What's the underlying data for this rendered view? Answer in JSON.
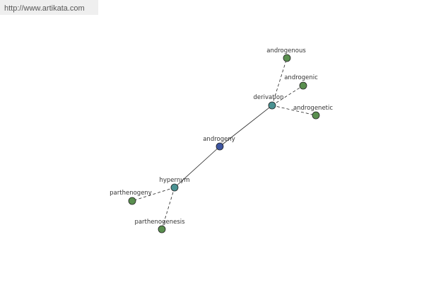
{
  "header": {
    "url": "http://www.artikata.com"
  },
  "nodes": [
    {
      "label": "androgeny"
    },
    {
      "label": "derivation"
    },
    {
      "label": "hypernym"
    },
    {
      "label": "androgenous"
    },
    {
      "label": "androgenic"
    },
    {
      "label": "androgenetic"
    },
    {
      "label": "parthenogeny"
    },
    {
      "label": "parthenogenesis"
    }
  ]
}
